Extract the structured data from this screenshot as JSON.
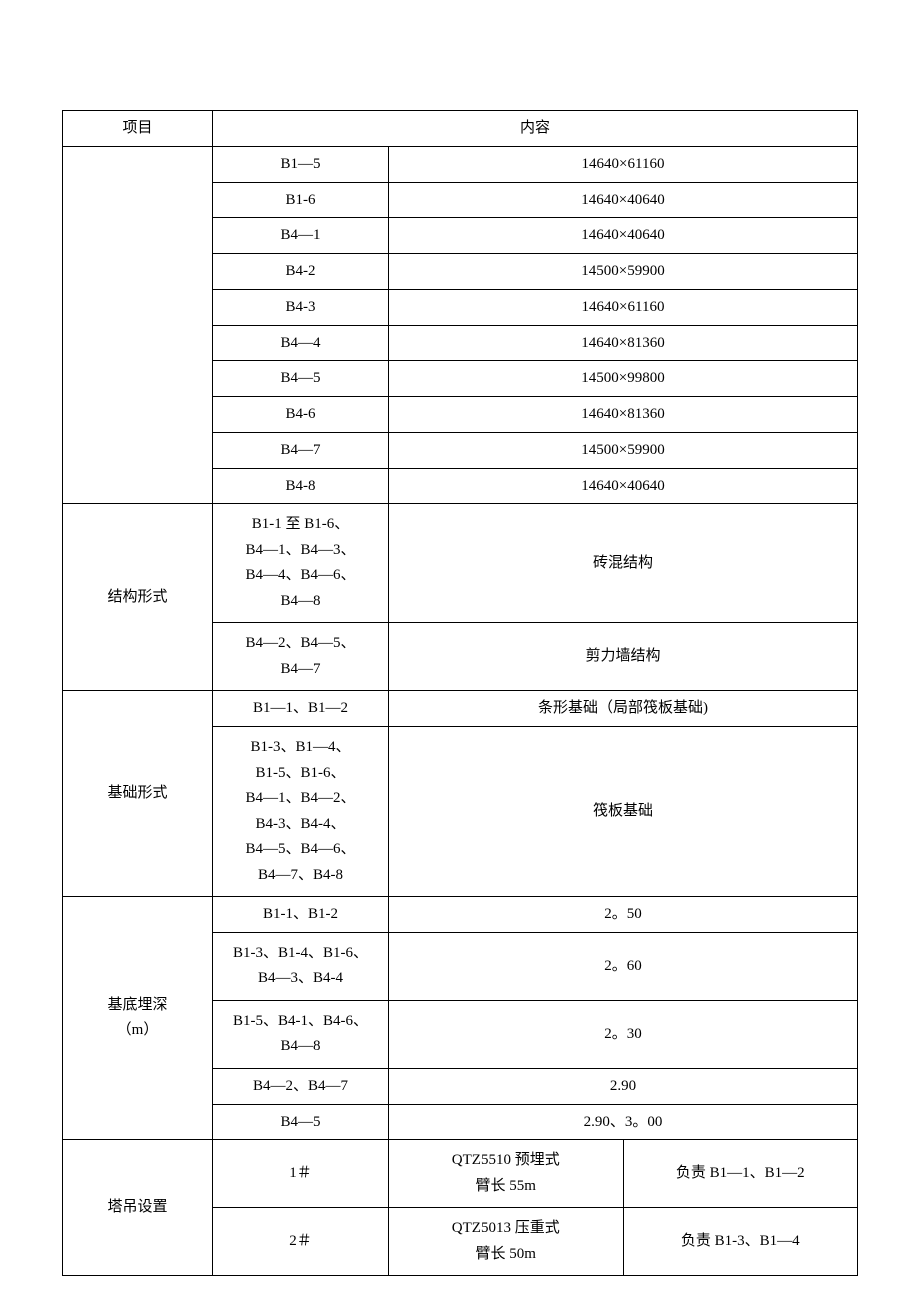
{
  "header": {
    "project": "项目",
    "content": "内容"
  },
  "dimensions": {
    "rows": [
      {
        "label": "B1—5",
        "value": "14640×61160"
      },
      {
        "label": "B1-6",
        "value": "14640×40640"
      },
      {
        "label": "B4—1",
        "value": "14640×40640"
      },
      {
        "label": "B4-2",
        "value": "14500×59900"
      },
      {
        "label": "B4-3",
        "value": "14640×61160"
      },
      {
        "label": "B4—4",
        "value": "14640×81360"
      },
      {
        "label": "B4—5",
        "value": "14500×99800"
      },
      {
        "label": "B4-6",
        "value": "14640×81360"
      },
      {
        "label": "B4—7",
        "value": "14500×59900"
      },
      {
        "label": "B4-8",
        "value": "14640×40640"
      }
    ]
  },
  "structure": {
    "title": "结构形式",
    "row1_label": "B1-1 至 B1-6、\nB4—1、B4—3、\nB4—4、B4—6、\nB4—8",
    "row1_value": "砖混结构",
    "row2_label": "B4—2、B4—5、\nB4—7",
    "row2_value": "剪力墙结构"
  },
  "foundation": {
    "title": "基础形式",
    "row1_label": "B1—1、B1—2",
    "row1_value": "条形基础（局部筏板基础)",
    "row2_label": "B1-3、B1—4、\nB1-5、B1-6、\nB4—1、B4—2、\nB4-3、B4-4、\nB4—5、B4—6、\nB4—7、B4-8",
    "row2_value": "筏板基础"
  },
  "depth": {
    "title": "基底埋深\n（m）",
    "rows": [
      {
        "label": "B1-1、B1-2",
        "value": "2。50"
      },
      {
        "label": "B1-3、B1-4、B1-6、\nB4—3、B4-4",
        "value": "2。60"
      },
      {
        "label": "B1-5、B4-1、B4-6、\nB4—8",
        "value": "2。30"
      },
      {
        "label": "B4—2、B4—7",
        "value": "2.90"
      },
      {
        "label": "B4—5",
        "value": "2.90、3。00"
      }
    ]
  },
  "crane": {
    "title": "塔吊设置",
    "row1_num": "1＃",
    "row1_spec": "QTZ5510 预埋式\n臂长 55m",
    "row1_resp": "负责 B1—1、B1—2",
    "row2_num": "2＃",
    "row2_spec": "QTZ5013 压重式\n臂长 50m",
    "row2_resp": "负责 B1-3、B1—4"
  }
}
